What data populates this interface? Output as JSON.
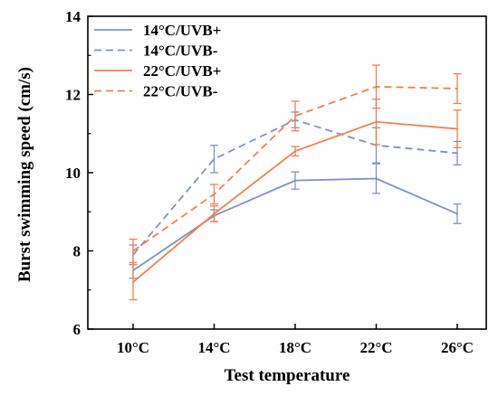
{
  "chart_data": {
    "type": "line",
    "xlabel": "Test temperature",
    "ylabel": "Burst swimming speed (cm/s)",
    "categories": [
      "10°C",
      "14°C",
      "18°C",
      "22°C",
      "26°C"
    ],
    "ylim": [
      6,
      14
    ],
    "yticks": [
      6,
      8,
      10,
      12,
      14
    ],
    "ytick_labels": [
      "6",
      "8",
      "10",
      "12",
      "14"
    ],
    "legend_position": "top-left",
    "error_bars": true,
    "series": [
      {
        "name": "14°C/UVB+",
        "color": "#7f92c4",
        "dash": "solid",
        "values": [
          7.5,
          8.9,
          9.8,
          9.85,
          8.95
        ],
        "errors": [
          0.2,
          0.15,
          0.22,
          0.38,
          0.25
        ]
      },
      {
        "name": "14°C/UVB-",
        "color": "#7f92c4",
        "dash": "dashed",
        "values": [
          7.9,
          10.35,
          11.35,
          10.7,
          10.5
        ],
        "errors": [
          0.25,
          0.35,
          0.2,
          0.45,
          0.3
        ]
      },
      {
        "name": "22°C/UVB+",
        "color": "#f08050",
        "dash": "solid",
        "values": [
          7.2,
          8.95,
          10.55,
          11.3,
          11.12
        ],
        "errors": [
          0.45,
          0.2,
          0.12,
          0.58,
          0.48
        ]
      },
      {
        "name": "22°C/UVB-",
        "color": "#f08050",
        "dash": "dashed",
        "values": [
          8.0,
          9.45,
          11.45,
          12.2,
          12.15
        ],
        "errors": [
          0.3,
          0.25,
          0.38,
          0.55,
          0.38
        ]
      }
    ]
  }
}
